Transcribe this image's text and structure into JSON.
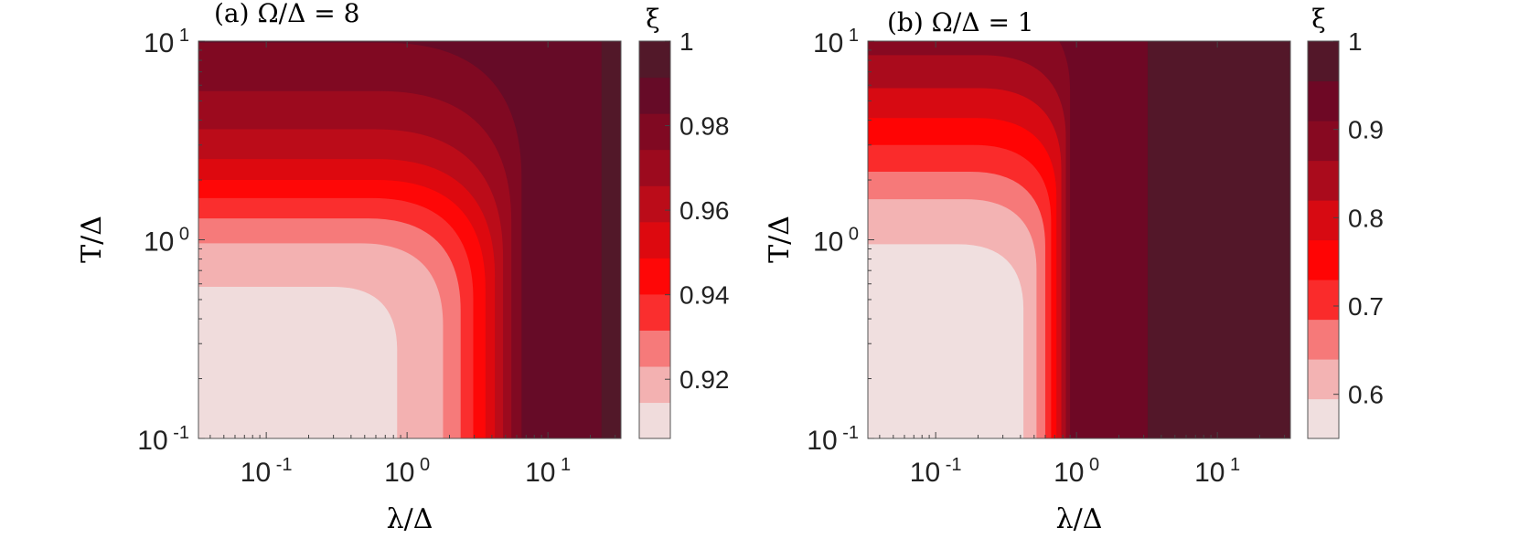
{
  "chart_data": [
    {
      "type": "heatmap",
      "subtype": "filled-contour",
      "title": "(a) Ω/Δ = 8",
      "xlabel": "λ/Δ",
      "ylabel": "T/Δ",
      "x_scale": "log",
      "y_scale": "log",
      "xlim": [
        0.033,
        33
      ],
      "ylim": [
        0.1,
        10
      ],
      "x_ticks": [
        {
          "value": 0.1,
          "base": "10",
          "exp": "-1"
        },
        {
          "value": 1,
          "base": "10",
          "exp": "0"
        },
        {
          "value": 10,
          "base": "10",
          "exp": "1"
        }
      ],
      "y_ticks": [
        {
          "value": 0.1,
          "base": "10",
          "exp": "-1"
        },
        {
          "value": 1,
          "base": "10",
          "exp": "0"
        },
        {
          "value": 10,
          "base": "10",
          "exp": "1"
        }
      ],
      "colorbar": {
        "label": "ξ",
        "range": [
          0.906,
          1.0
        ],
        "tick_values": [
          0.92,
          0.94,
          0.96,
          0.98,
          1
        ],
        "tick_labels": [
          "0.92",
          "0.94",
          "0.96",
          "0.98",
          "1"
        ]
      },
      "contour_levels": [
        {
          "xi": 0.911,
          "lambda_edge": 0.85,
          "t_edge": 0.58
        },
        {
          "xi": 0.921,
          "lambda_edge": 1.8,
          "t_edge": 0.96
        },
        {
          "xi": 0.931,
          "lambda_edge": 2.4,
          "t_edge": 1.28
        },
        {
          "xi": 0.941,
          "lambda_edge": 2.95,
          "t_edge": 1.62
        },
        {
          "xi": 0.951,
          "lambda_edge": 3.6,
          "t_edge": 2.0
        },
        {
          "xi": 0.961,
          "lambda_edge": 4.2,
          "t_edge": 2.55
        },
        {
          "xi": 0.969,
          "lambda_edge": 4.8,
          "t_edge": 3.6
        },
        {
          "xi": 0.976,
          "lambda_edge": 5.5,
          "t_edge": 5.6
        },
        {
          "xi": 0.983,
          "lambda_edge": 6.5,
          "t_edge": 9.8
        },
        {
          "xi": 0.99,
          "lambda_edge": 24,
          "t_edge": 999
        },
        {
          "xi": 0.997,
          "lambda_edge": 999,
          "t_edge": 999
        }
      ]
    },
    {
      "type": "heatmap",
      "subtype": "filled-contour",
      "title": "(b) Ω/Δ = 1",
      "xlabel": "λ/Δ",
      "ylabel": "T/Δ",
      "x_scale": "log",
      "y_scale": "log",
      "xlim": [
        0.033,
        33
      ],
      "ylim": [
        0.1,
        10
      ],
      "x_ticks": [
        {
          "value": 0.1,
          "base": "10",
          "exp": "-1"
        },
        {
          "value": 1,
          "base": "10",
          "exp": "0"
        },
        {
          "value": 10,
          "base": "10",
          "exp": "1"
        }
      ],
      "y_ticks": [
        {
          "value": 0.1,
          "base": "10",
          "exp": "-1"
        },
        {
          "value": 1,
          "base": "10",
          "exp": "0"
        },
        {
          "value": 10,
          "base": "10",
          "exp": "1"
        }
      ],
      "colorbar": {
        "label": "ξ",
        "range": [
          0.55,
          1.0
        ],
        "tick_values": [
          0.6,
          0.7,
          0.8,
          0.9,
          1
        ],
        "tick_labels": [
          "0.6",
          "0.7",
          "0.8",
          "0.9",
          "1"
        ]
      },
      "contour_levels": [
        {
          "xi": 0.57,
          "lambda_edge": 0.42,
          "t_edge": 0.95
        },
        {
          "xi": 0.62,
          "lambda_edge": 0.52,
          "t_edge": 1.6
        },
        {
          "xi": 0.67,
          "lambda_edge": 0.6,
          "t_edge": 2.2
        },
        {
          "xi": 0.72,
          "lambda_edge": 0.66,
          "t_edge": 3.0
        },
        {
          "xi": 0.77,
          "lambda_edge": 0.72,
          "t_edge": 4.1
        },
        {
          "xi": 0.82,
          "lambda_edge": 0.78,
          "t_edge": 5.8
        },
        {
          "xi": 0.87,
          "lambda_edge": 0.84,
          "t_edge": 8.5
        },
        {
          "xi": 0.91,
          "lambda_edge": 0.9,
          "t_edge": 15
        },
        {
          "xi": 0.94,
          "lambda_edge": 3.2,
          "t_edge": 999
        },
        {
          "xi": 0.985,
          "lambda_edge": 999,
          "t_edge": 999
        }
      ]
    }
  ],
  "colors": {
    "colormap": [
      "#efefef",
      "#f2c2c2",
      "#f58585",
      "#fa2c2c",
      "#ff0000",
      "#cd0d16",
      "#9a0a1e",
      "#6b0826",
      "#4a1d2a"
    ]
  }
}
